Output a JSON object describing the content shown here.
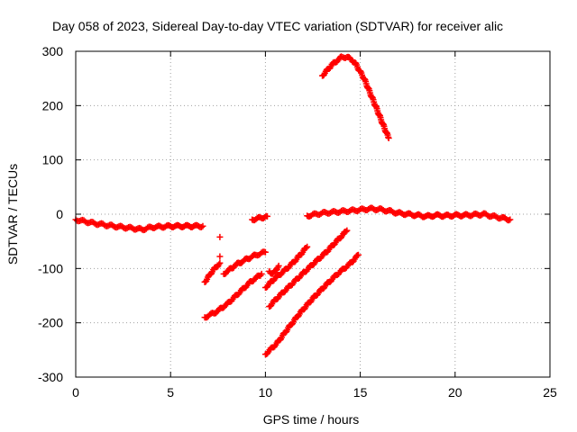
{
  "chart_data": {
    "type": "scatter",
    "title": "Day 058 of 2023, Sidereal Day-to-day VTEC variation (SDTVAR) for receiver alic",
    "xlabel": "GPS time / hours",
    "ylabel": "SDTVAR / TECUs",
    "xlim": [
      0,
      25
    ],
    "ylim": [
      -300,
      300
    ],
    "xticks": [
      0,
      5,
      10,
      15,
      20,
      25
    ],
    "yticks": [
      -300,
      -200,
      -100,
      0,
      100,
      200,
      300
    ],
    "xtick_labels": [
      "0",
      "5",
      "10",
      "15",
      "20",
      "25"
    ],
    "ytick_labels": [
      "-300",
      "-200",
      "-100",
      "0",
      "100",
      "200",
      "300"
    ],
    "grid": true,
    "legend": "none",
    "marker": "+",
    "series_color": "#ff0000",
    "segments": [
      {
        "points": [
          [
            0,
            -10
          ],
          [
            1,
            -17
          ],
          [
            2,
            -22
          ],
          [
            3,
            -26
          ],
          [
            3.5,
            -28
          ],
          [
            4,
            -24
          ],
          [
            5,
            -22
          ],
          [
            6,
            -22
          ],
          [
            6.7,
            -22
          ]
        ]
      },
      {
        "points": [
          [
            9.3,
            -10
          ],
          [
            9.7,
            -7
          ],
          [
            10.1,
            -4
          ]
        ]
      },
      {
        "points": [
          [
            12.2,
            -3
          ],
          [
            13,
            2
          ],
          [
            14,
            5
          ],
          [
            15,
            8
          ],
          [
            15.5,
            10
          ],
          [
            16,
            9
          ],
          [
            16.5,
            6
          ],
          [
            17,
            2
          ],
          [
            17.5,
            0
          ],
          [
            18,
            -2
          ],
          [
            18.5,
            -4
          ],
          [
            19,
            -2
          ],
          [
            19.5,
            -3
          ],
          [
            20,
            -2
          ],
          [
            20.5,
            -2
          ],
          [
            21,
            -1
          ],
          [
            21.5,
            0
          ],
          [
            22,
            -4
          ],
          [
            22.5,
            -7
          ],
          [
            22.9,
            -10
          ]
        ]
      },
      {
        "points": [
          [
            13,
            255
          ],
          [
            13.5,
            275
          ],
          [
            14,
            289
          ],
          [
            14.3,
            290
          ],
          [
            14.7,
            280
          ],
          [
            15.2,
            250
          ],
          [
            15.8,
            200
          ],
          [
            16.2,
            165
          ],
          [
            16.5,
            140
          ]
        ]
      },
      {
        "points": [
          [
            6.8,
            -125
          ],
          [
            7.2,
            -105
          ],
          [
            7.6,
            -90
          ]
        ]
      },
      {
        "points": [
          [
            7.6,
            -42
          ]
        ]
      },
      {
        "points": [
          [
            7.6,
            -78
          ]
        ]
      },
      {
        "points": [
          [
            7.8,
            -110
          ],
          [
            8.5,
            -92
          ],
          [
            9,
            -83
          ],
          [
            9.5,
            -75
          ],
          [
            10,
            -70
          ]
        ]
      },
      {
        "points": [
          [
            6.8,
            -190
          ],
          [
            7.4,
            -180
          ],
          [
            8,
            -165
          ],
          [
            8.6,
            -145
          ],
          [
            9.2,
            -125
          ],
          [
            9.8,
            -110
          ]
        ]
      },
      {
        "points": [
          [
            10,
            -135
          ],
          [
            10.5,
            -118
          ],
          [
            11,
            -104
          ],
          [
            11.5,
            -88
          ],
          [
            12.2,
            -60
          ]
        ]
      },
      {
        "points": [
          [
            10.2,
            -105
          ],
          [
            10.4,
            -110
          ],
          [
            10.7,
            -95
          ]
        ]
      },
      {
        "points": [
          [
            10.2,
            -170
          ],
          [
            10.6,
            -155
          ],
          [
            11.2,
            -135
          ],
          [
            11.8,
            -115
          ],
          [
            12.5,
            -92
          ],
          [
            13.2,
            -70
          ],
          [
            13.8,
            -48
          ],
          [
            14.3,
            -30
          ]
        ]
      },
      {
        "points": [
          [
            10,
            -258
          ],
          [
            10.6,
            -238
          ],
          [
            11.2,
            -210
          ],
          [
            11.8,
            -183
          ],
          [
            12.5,
            -155
          ],
          [
            13.2,
            -130
          ],
          [
            13.8,
            -110
          ],
          [
            14.5,
            -90
          ],
          [
            14.9,
            -75
          ]
        ]
      }
    ]
  }
}
